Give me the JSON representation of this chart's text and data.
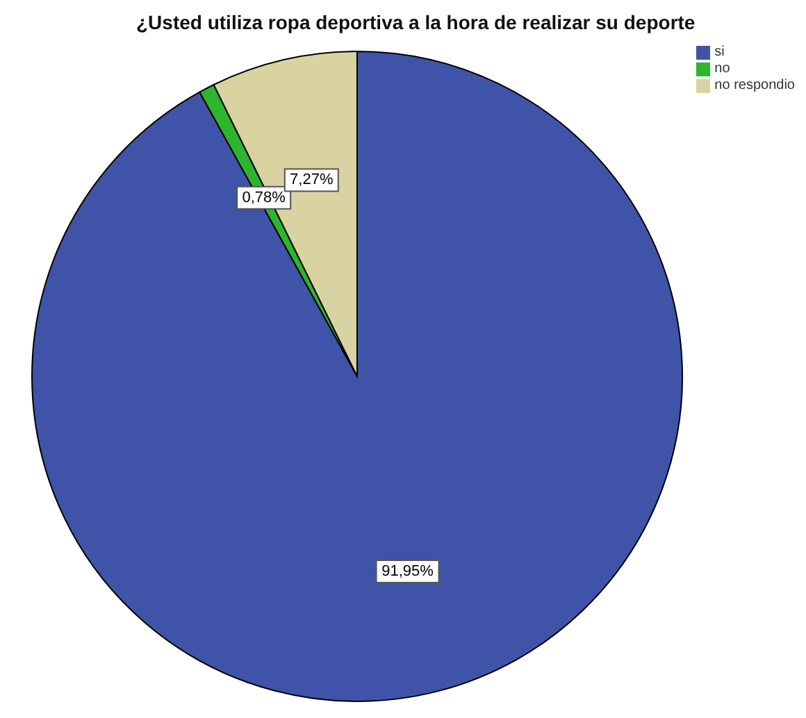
{
  "chart_data": {
    "type": "pie",
    "title": "¿Usted utiliza ropa deportiva a la hora de realizar su deporte",
    "categories": [
      "si",
      "no",
      "no respondio"
    ],
    "values": [
      91.95,
      0.78,
      7.27
    ],
    "colors": [
      "#3f54a8",
      "#2db52d",
      "#d8d3a0"
    ],
    "value_labels": [
      "91,95%",
      "0,78%",
      "7,27%"
    ],
    "legend": "top right"
  }
}
